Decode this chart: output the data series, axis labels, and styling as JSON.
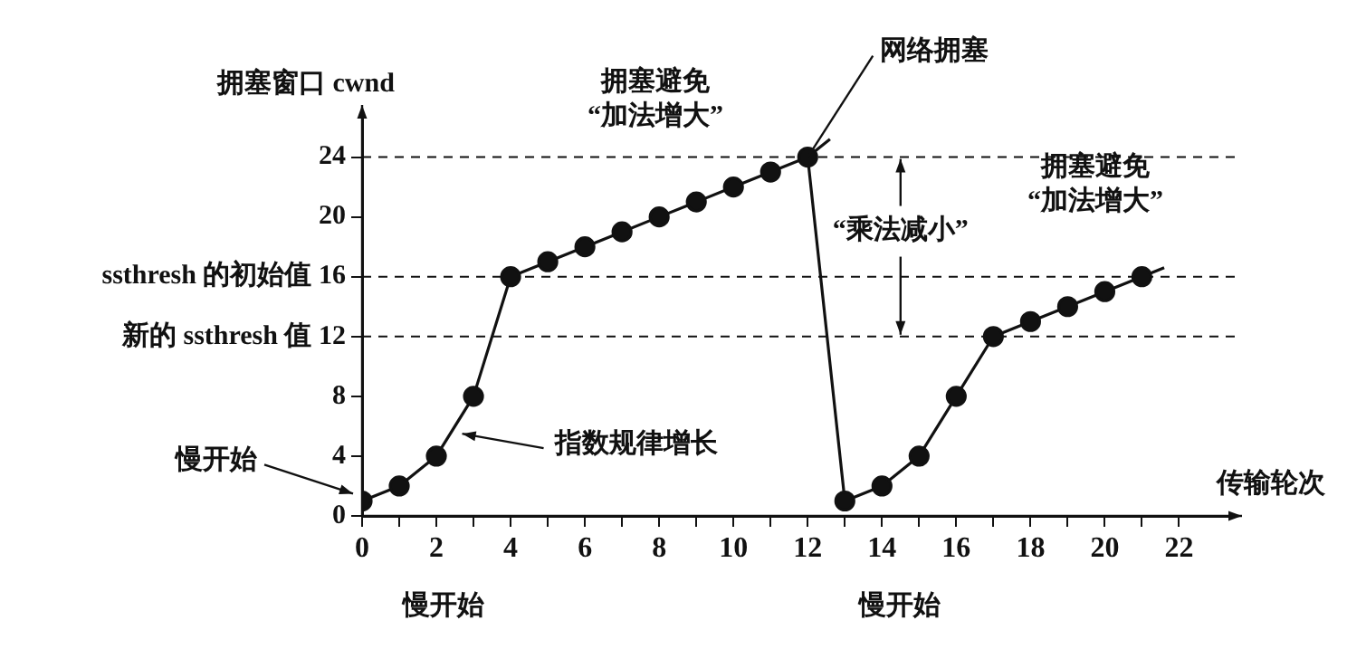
{
  "chart_data": {
    "type": "line",
    "ylabel": "拥塞窗口 cwnd",
    "xlabel": "传输轮次",
    "xlim": [
      0,
      23.5
    ],
    "ylim": [
      0,
      27
    ],
    "xticks": [
      0,
      {
        "value": 1,
        "label": null
      },
      2,
      {
        "value": 3,
        "label": null
      },
      4,
      {
        "value": 5,
        "label": null
      },
      6,
      {
        "value": 7,
        "label": null
      },
      8,
      {
        "value": 9,
        "label": null
      },
      10,
      {
        "value": 11,
        "label": null
      },
      12,
      {
        "value": 13,
        "label": null
      },
      14,
      {
        "value": 15,
        "label": null
      },
      16,
      {
        "value": 17,
        "label": null
      },
      18,
      {
        "value": 19,
        "label": null
      },
      20,
      {
        "value": 21,
        "label": null
      },
      22
    ],
    "yticks": [
      0,
      4,
      8,
      {
        "value": 12,
        "label": "新的 ssthresh 值 12"
      },
      {
        "value": 16,
        "label": "ssthresh 的初始值 16"
      },
      20,
      24
    ],
    "grid": false,
    "legend": false,
    "marker": "circle",
    "line_style": "solid",
    "series": [
      {
        "color": "#111111",
        "x": [
          0,
          1,
          2,
          3,
          4,
          5,
          6,
          7,
          8,
          9,
          10,
          11,
          12,
          13,
          14,
          15,
          16,
          17,
          18,
          19,
          20,
          21
        ],
        "values": [
          1,
          2,
          4,
          8,
          16,
          17,
          18,
          19,
          20,
          21,
          22,
          23,
          24,
          1,
          2,
          4,
          8,
          12,
          13,
          14,
          15,
          16
        ]
      },
      {
        "color": "#111111",
        "marker": "none",
        "x": [
          12,
          12.6
        ],
        "values": [
          24,
          25.2
        ]
      },
      {
        "color": "#111111",
        "marker": "none",
        "x": [
          21,
          21.6
        ],
        "values": [
          16,
          16.6
        ]
      }
    ],
    "ref_lines": [
      {
        "axis": "y",
        "value": 24,
        "color": "#111111",
        "line_style": "dashed"
      },
      {
        "axis": "y",
        "value": 16,
        "color": "#111111",
        "line_style": "dashed"
      },
      {
        "axis": "y",
        "value": 12,
        "color": "#111111",
        "line_style": "dashed"
      }
    ],
    "annotations": [
      "拥塞避免\n“加法增大”",
      {
        "text": "网络拥塞",
        "x": 12,
        "y": 24
      },
      "拥塞避免\n“加法增大”",
      {
        "text": "“乘法减小”",
        "x": 14.5,
        "y": 24
      },
      {
        "text": "慢开始",
        "x": 0,
        "y": 1
      },
      {
        "text": "指数规律增长",
        "x": 2.5,
        "y": 5.5
      },
      "慢开始",
      "慢开始"
    ]
  }
}
